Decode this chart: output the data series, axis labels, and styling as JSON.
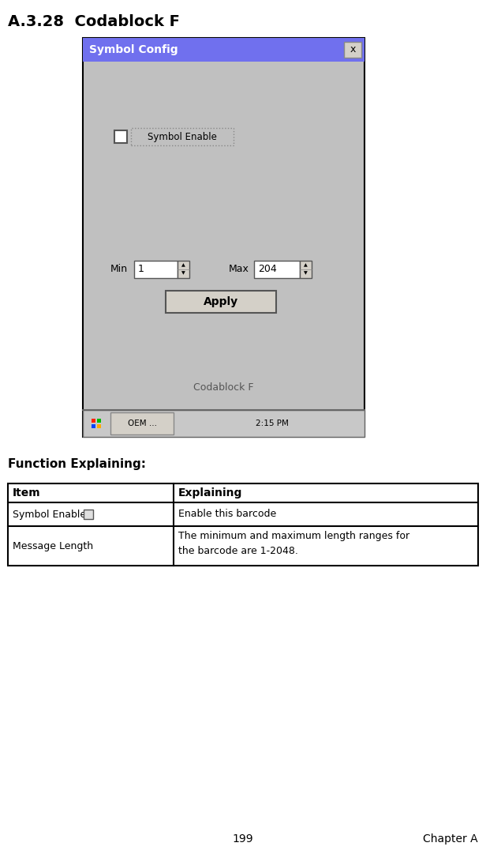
{
  "title": "A.3.28  Codablock F",
  "title_fontsize": 14,
  "dialog_title": "Symbol Config",
  "dialog_title_color": "#ffffff",
  "dialog_header_color": "#7070ee",
  "dialog_bg_color": "#c0c0c0",
  "dialog_border_color": "#000000",
  "checkbox_label": "Symbol Enable",
  "min_label": "Min",
  "min_value": "1",
  "max_label": "Max",
  "max_value": "204",
  "apply_button": "Apply",
  "barcode_name": "Codablock F",
  "taskbar_time": "2:15 PM",
  "taskbar_oem": "OEM ...",
  "function_explaining_label": "Function Explaining:",
  "table_headers": [
    "Item",
    "Explaining"
  ],
  "page_number": "199",
  "chapter_label": "Chapter A",
  "bg_color": "#ffffff",
  "table_border_color": "#000000",
  "text_color": "#000000",
  "fig_w": 6.16,
  "fig_h": 10.81,
  "dpi": 100
}
